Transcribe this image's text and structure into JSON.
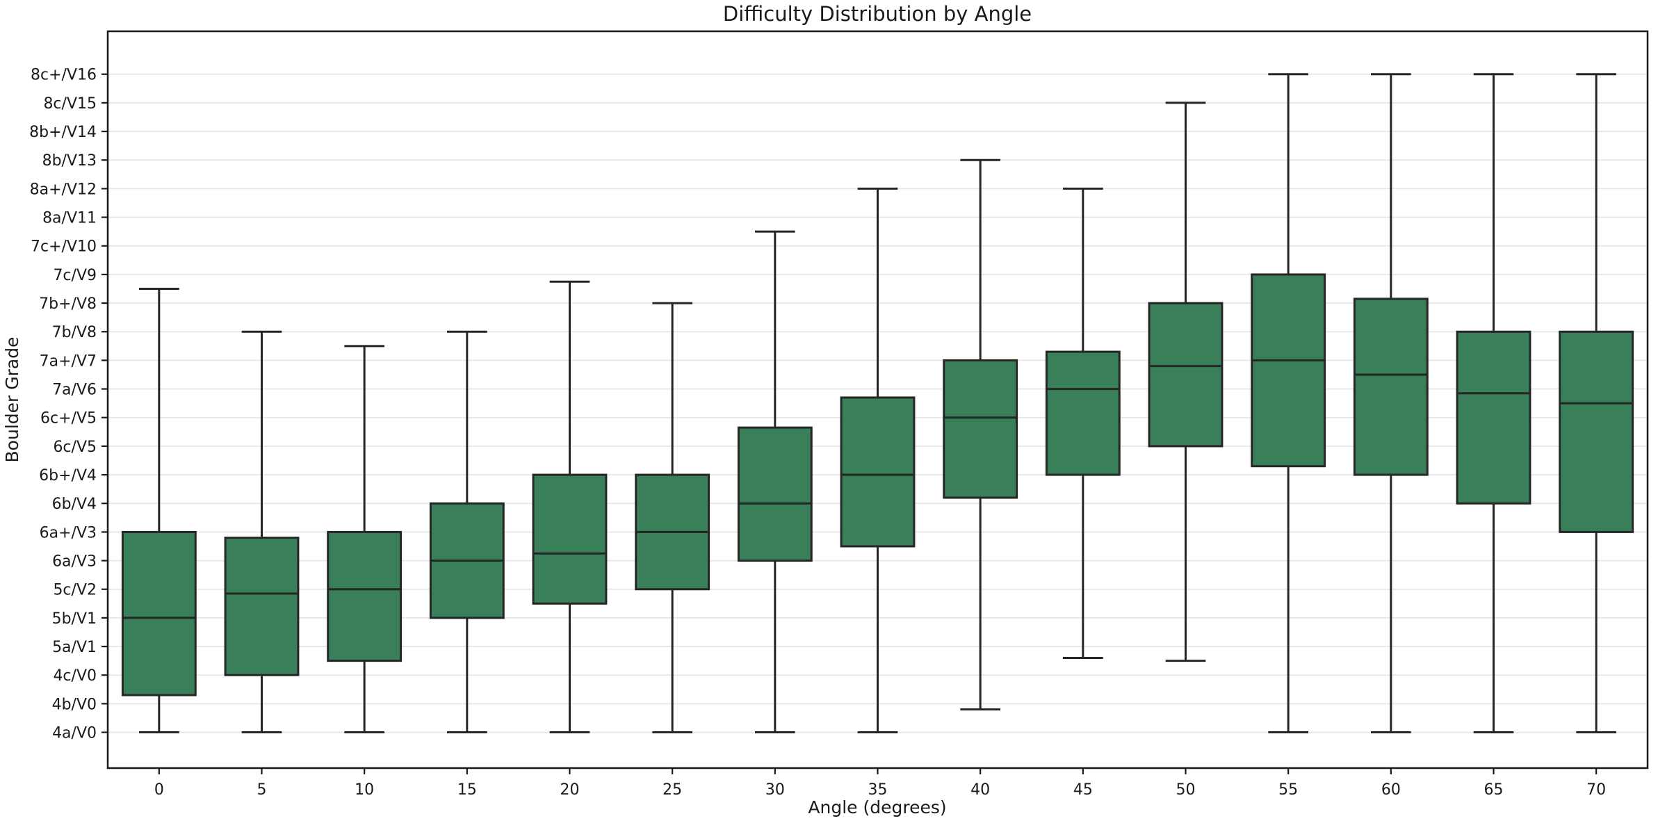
{
  "figure": {
    "title": "Difficulty Distribution by Angle",
    "xlabel": "Angle (degrees)",
    "ylabel": "Boulder Grade"
  },
  "colors": {
    "box_fill": "#397f59",
    "box_edge": "#262626",
    "whisker": "#262626",
    "median": "#262626",
    "grid": "#e7e7e7",
    "spine": "#1a1a1a",
    "text": "#1a1a1a",
    "background": "#ffffff"
  },
  "chart_data": {
    "type": "box",
    "title": "Difficulty Distribution by Angle",
    "xlabel": "Angle (degrees)",
    "ylabel": "Boulder Grade",
    "categories": [
      "0",
      "5",
      "10",
      "15",
      "20",
      "25",
      "30",
      "35",
      "40",
      "45",
      "50",
      "55",
      "60",
      "65",
      "70"
    ],
    "y_tick_labels": [
      "4a/V0",
      "4b/V0",
      "4c/V0",
      "5a/V1",
      "5b/V1",
      "5c/V2",
      "6a/V3",
      "6a+/V3",
      "6b/V4",
      "6b+/V4",
      "6c/V5",
      "6c+/V5",
      "7a/V6",
      "7a+/V7",
      "7b/V8",
      "7b+/V8",
      "7c/V9",
      "7c+/V10",
      "8a/V11",
      "8a+/V12",
      "8b/V13",
      "8b+/V14",
      "8c/V15",
      "8c+/V16"
    ],
    "ylim": [
      -1.25,
      24.5
    ],
    "grid": "horizontal",
    "legend": "none",
    "boxes": [
      {
        "angle": "0",
        "whisker_low": 0,
        "q1": 1.3,
        "median": 4.0,
        "q3": 7.0,
        "whisker_high": 15.5
      },
      {
        "angle": "5",
        "whisker_low": 0,
        "q1": 2.0,
        "median": 4.85,
        "q3": 6.8,
        "whisker_high": 14.0
      },
      {
        "angle": "10",
        "whisker_low": 0,
        "q1": 2.5,
        "median": 5.0,
        "q3": 7.0,
        "whisker_high": 13.5
      },
      {
        "angle": "15",
        "whisker_low": 0,
        "q1": 4.0,
        "median": 6.0,
        "q3": 8.0,
        "whisker_high": 14.0
      },
      {
        "angle": "20",
        "whisker_low": 0,
        "q1": 4.5,
        "median": 6.25,
        "q3": 9.0,
        "whisker_high": 15.75
      },
      {
        "angle": "25",
        "whisker_low": 0,
        "q1": 5.0,
        "median": 7.0,
        "q3": 9.0,
        "whisker_high": 15.0
      },
      {
        "angle": "30",
        "whisker_low": 0,
        "q1": 6.0,
        "median": 8.0,
        "q3": 10.65,
        "whisker_high": 17.5
      },
      {
        "angle": "35",
        "whisker_low": 0,
        "q1": 6.5,
        "median": 9.0,
        "q3": 11.7,
        "whisker_high": 19.0
      },
      {
        "angle": "40",
        "whisker_low": 0.8,
        "q1": 8.2,
        "median": 11.0,
        "q3": 13.0,
        "whisker_high": 20.0
      },
      {
        "angle": "45",
        "whisker_low": 2.6,
        "q1": 9.0,
        "median": 12.0,
        "q3": 13.3,
        "whisker_high": 19.0
      },
      {
        "angle": "50",
        "whisker_low": 2.5,
        "q1": 10.0,
        "median": 12.8,
        "q3": 15.0,
        "whisker_high": 22.0
      },
      {
        "angle": "55",
        "whisker_low": 0,
        "q1": 9.3,
        "median": 13.0,
        "q3": 16.0,
        "whisker_high": 23.0
      },
      {
        "angle": "60",
        "whisker_low": 0,
        "q1": 9.0,
        "median": 12.5,
        "q3": 15.15,
        "whisker_high": 23.0
      },
      {
        "angle": "65",
        "whisker_low": 0,
        "q1": 8.0,
        "median": 11.85,
        "q3": 14.0,
        "whisker_high": 23.0
      },
      {
        "angle": "70",
        "whisker_low": 0,
        "q1": 7.0,
        "median": 11.5,
        "q3": 14.0,
        "whisker_high": 23.0
      }
    ]
  }
}
